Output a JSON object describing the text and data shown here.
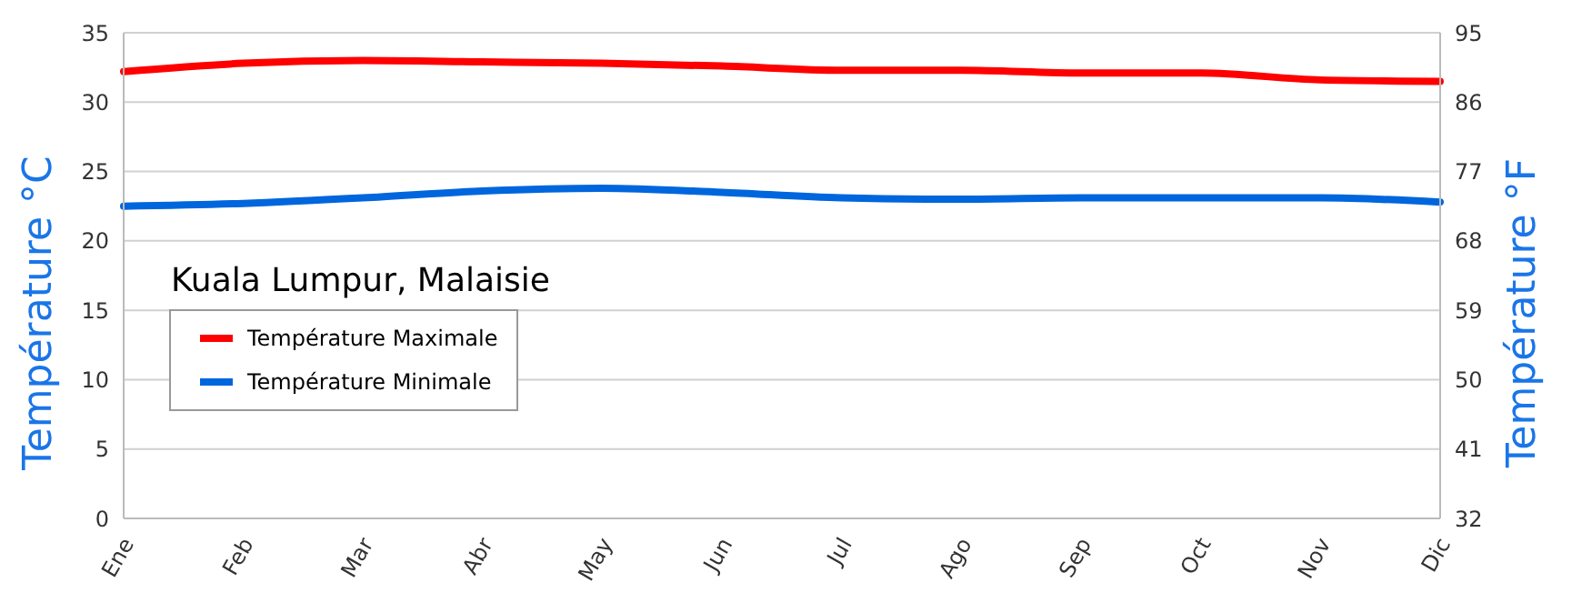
{
  "chart_data": {
    "type": "line",
    "title": "Kuala Lumpur, Malaisie",
    "ylabel": "Température °C",
    "y2label": "Température °F",
    "categories": [
      "Ene",
      "Feb",
      "Mar",
      "Abr",
      "May",
      "Jun",
      "Jul",
      "Ago",
      "Sep",
      "Oct",
      "Nov",
      "Dic"
    ],
    "series": [
      {
        "name": "Température Maximale",
        "color": "#ff0000",
        "values": [
          32.2,
          32.8,
          33.0,
          32.9,
          32.8,
          32.6,
          32.3,
          32.3,
          32.1,
          32.1,
          31.6,
          31.5
        ]
      },
      {
        "name": "Température Minimale",
        "color": "#0066dd",
        "values": [
          22.5,
          22.7,
          23.1,
          23.6,
          23.8,
          23.5,
          23.1,
          23.0,
          23.1,
          23.1,
          23.1,
          22.8
        ]
      }
    ],
    "ylim": [
      0,
      35
    ],
    "yticks": [
      0,
      5,
      10,
      15,
      20,
      25,
      30,
      35
    ],
    "y2lim": [
      32,
      95
    ],
    "y2ticks": [
      32,
      41,
      50,
      59,
      68,
      77,
      86,
      95
    ],
    "grid": "y",
    "legend": "left"
  }
}
